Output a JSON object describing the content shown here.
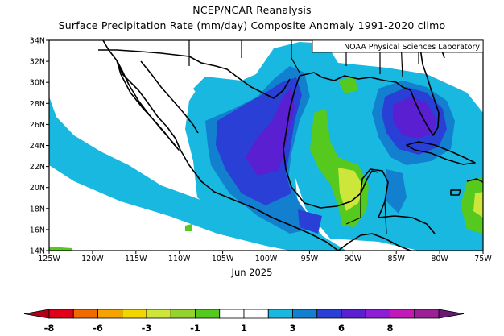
{
  "title": "NCEP/NCAR Reanalysis",
  "subtitle": "Surface Precipitation Rate (mm/day) Composite Anomaly 1991-2020 climo",
  "credit": "NOAA Physical Sciences Laboratory",
  "period": "Jun 2025",
  "lat_labels": [
    "34N",
    "32N",
    "30N",
    "28N",
    "26N",
    "24N",
    "22N",
    "20N",
    "18N",
    "16N",
    "14N"
  ],
  "lon_labels": [
    "125W",
    "120W",
    "115W",
    "110W",
    "105W",
    "100W",
    "95W",
    "90W",
    "85W",
    "80W",
    "75W"
  ],
  "colorbar": {
    "tick_labels": [
      "-8",
      "-6",
      "-3",
      "-1",
      "1",
      "3",
      "6",
      "8"
    ],
    "colors": [
      "#e0001a",
      "#f06a00",
      "#f4a300",
      "#f2d600",
      "#cce639",
      "#94d22d",
      "#56c91e",
      "#ffffff",
      "#ffffff",
      "#19b8e0",
      "#1280cf",
      "#2a3fd6",
      "#5a1fd0",
      "#8e1ed6",
      "#c11ab8",
      "#9c1f96"
    ],
    "left_arrow_color": "#b00018",
    "right_arrow_color": "#6a1878"
  },
  "map": {
    "region_lon": [
      -125,
      -75
    ],
    "region_lat": [
      14,
      34
    ],
    "projection": "plate carree",
    "variable": "Surface Precipitation Rate anomaly (mm/day)"
  }
}
